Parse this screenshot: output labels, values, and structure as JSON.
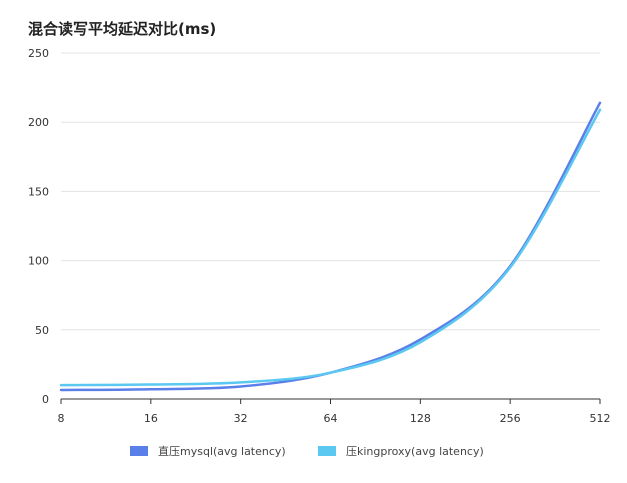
{
  "chart_data": {
    "type": "line",
    "title": "混合读写平均延迟对比(ms)",
    "xlabel": "",
    "ylabel": "",
    "x_scale": "log2",
    "x": [
      8,
      16,
      32,
      64,
      128,
      256,
      512
    ],
    "x_tick_labels": [
      "8",
      "16",
      "32",
      "64",
      "128",
      "256",
      "512"
    ],
    "ylim": [
      0,
      250
    ],
    "y_ticks": [
      0,
      50,
      100,
      150,
      200,
      250
    ],
    "y_tick_labels": [
      "0",
      "50",
      "100",
      "150",
      "200",
      "250"
    ],
    "grid": true,
    "legend_position": "bottom",
    "series": [
      {
        "name": "直压mysql(avg latency)",
        "color": "#5b7fe8",
        "values": [
          6.5,
          7,
          9,
          19,
          43,
          96,
          214
        ]
      },
      {
        "name": "压kingproxy(avg latency)",
        "color": "#5ac8f0",
        "values": [
          10,
          10.5,
          12,
          19,
          41,
          95,
          209
        ]
      }
    ]
  }
}
